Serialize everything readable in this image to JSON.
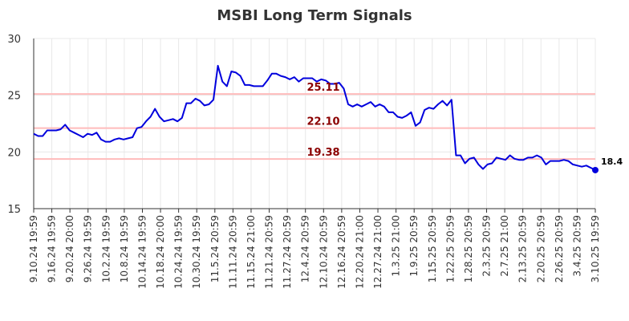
{
  "chart_data": {
    "type": "line",
    "title": "MSBI Long Term Signals",
    "xlabel": "",
    "ylabel": "",
    "ylim": [
      15,
      30
    ],
    "yticks": [
      15,
      20,
      25,
      30
    ],
    "grid": true,
    "colors": {
      "line": "#0000dd",
      "level_line": "#ffbbbb",
      "level_label": "#8b0000",
      "grid": "#e8e8e8"
    },
    "x_tick_labels": [
      "9.10.24 19:59",
      "9.16.24 19:59",
      "9.20.24 20:00",
      "9.26.24 19:59",
      "10.2.24 19:59",
      "10.8.24 19:59",
      "10.14.24 19:59",
      "10.18.24 20:00",
      "10.24.24 19:59",
      "10.30.24 19:59",
      "11.5.24 20:59",
      "11.11.24 20:59",
      "11.15.24 21:00",
      "11.21.24 20:59",
      "11.27.24 20:59",
      "12.4.24 20:59",
      "12.10.24 20:59",
      "12.16.24 20:59",
      "12.20.24 21:00",
      "12.27.24 21:00",
      "1.3.25 21:00",
      "1.9.25 20:59",
      "1.15.25 20:59",
      "1.22.25 20:59",
      "1.28.25 20:59",
      "2.3.25 20:59",
      "2.7.25 21:00",
      "2.13.25 20:59",
      "2.20.25 20:59",
      "2.26.25 20:59",
      "3.4.25 20:59",
      "3.10.25 19:59"
    ],
    "levels": [
      {
        "value": 25.11,
        "label": "25.11"
      },
      {
        "value": 22.1,
        "label": "22.10"
      },
      {
        "value": 19.38,
        "label": "19.38"
      }
    ],
    "last_value_label": "18.4",
    "series": [
      {
        "values": [
          21.6,
          21.4,
          21.4,
          21.9,
          21.9,
          21.9,
          22.0,
          22.4,
          21.9,
          21.7,
          21.5,
          21.3,
          21.6,
          21.5,
          21.7,
          21.1,
          20.9,
          20.9,
          21.1,
          21.2,
          21.1,
          21.2,
          21.3,
          22.1,
          22.2,
          22.7,
          23.1,
          23.8,
          23.1,
          22.7,
          22.8,
          22.9,
          22.7,
          23.0,
          24.3,
          24.3,
          24.7,
          24.5,
          24.1,
          24.2,
          24.6,
          27.6,
          26.2,
          25.8,
          27.1,
          27.0,
          26.7,
          25.9,
          25.9,
          25.8,
          25.8,
          25.8,
          26.3,
          26.9,
          26.9,
          26.7,
          26.6,
          26.4,
          26.6,
          26.2,
          26.5,
          26.5,
          26.5,
          26.2,
          26.4,
          26.3,
          26.0,
          26.0,
          26.1,
          25.6,
          24.2,
          24.0,
          24.2,
          24.0,
          24.2,
          24.4,
          24.0,
          24.2,
          24.0,
          23.5,
          23.5,
          23.1,
          23.0,
          23.2,
          23.5,
          22.3,
          22.6,
          23.7,
          23.9,
          23.8,
          24.2,
          24.5,
          24.1,
          24.6,
          19.7,
          19.7,
          19.0,
          19.4,
          19.5,
          18.9,
          18.5,
          18.9,
          19.0,
          19.5,
          19.4,
          19.3,
          19.7,
          19.4,
          19.3,
          19.3,
          19.5,
          19.5,
          19.7,
          19.5,
          18.9,
          19.2,
          19.2,
          19.2,
          19.3,
          19.2,
          18.9,
          18.8,
          18.7,
          18.8,
          18.6,
          18.4
        ]
      }
    ]
  }
}
